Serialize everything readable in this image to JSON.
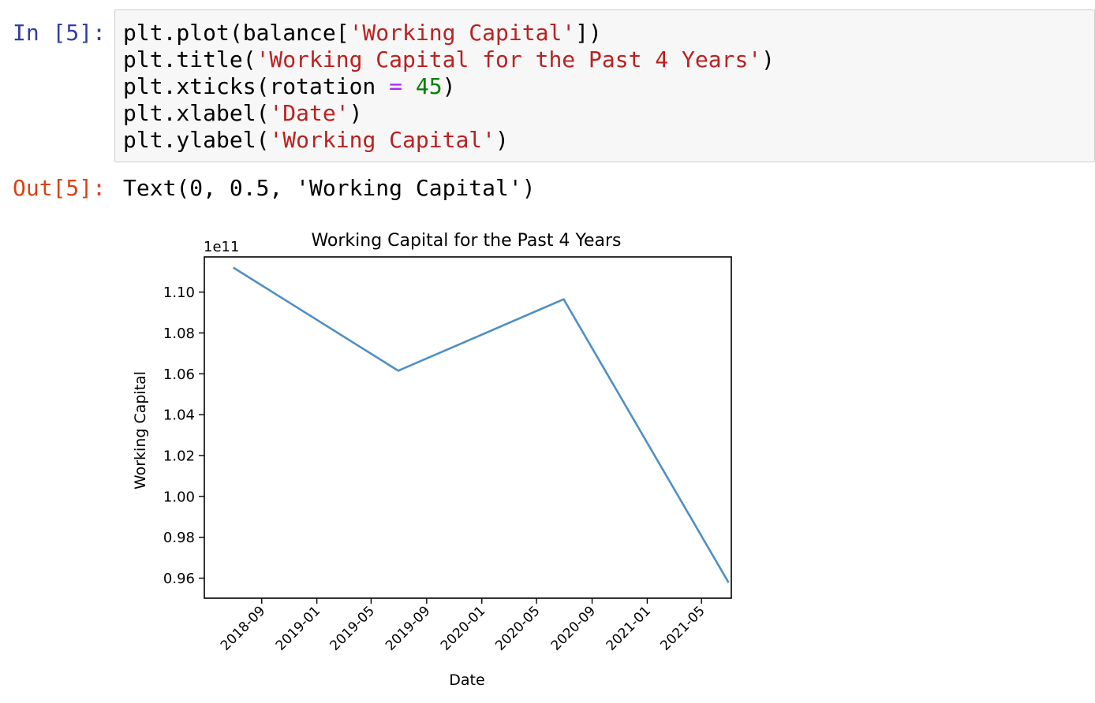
{
  "cell_in": {
    "prompt": "In [5]:",
    "code_lines": [
      [
        {
          "t": "plt.plot(balance[",
          "c": "plain"
        },
        {
          "t": "'Working Capital'",
          "c": "str"
        },
        {
          "t": "])",
          "c": "plain"
        }
      ],
      [
        {
          "t": "plt.title(",
          "c": "plain"
        },
        {
          "t": "'Working Capital for the Past 4 Years'",
          "c": "str"
        },
        {
          "t": ")",
          "c": "plain"
        }
      ],
      [
        {
          "t": "plt.xticks(rotation ",
          "c": "plain"
        },
        {
          "t": "=",
          "c": "op"
        },
        {
          "t": " ",
          "c": "plain"
        },
        {
          "t": "45",
          "c": "num"
        },
        {
          "t": ")",
          "c": "plain"
        }
      ],
      [
        {
          "t": "plt.xlabel(",
          "c": "plain"
        },
        {
          "t": "'Date'",
          "c": "str"
        },
        {
          "t": ")",
          "c": "plain"
        }
      ],
      [
        {
          "t": "plt.ylabel(",
          "c": "plain"
        },
        {
          "t": "'Working Capital'",
          "c": "str"
        },
        {
          "t": ")",
          "c": "plain"
        }
      ]
    ]
  },
  "cell_out": {
    "prompt": "Out[5]:",
    "text": "Text(0, 0.5, 'Working Capital')"
  },
  "colors": {
    "in_prompt": "#303f9f",
    "out_prompt": "#d84315",
    "code_string": "#ba2121",
    "code_number": "#008000",
    "code_operator": "#aa22ff",
    "line": "#4f8fc7"
  },
  "chart_data": {
    "type": "line",
    "title": "Working Capital for the Past 4 Years",
    "xlabel": "Date",
    "ylabel": "Working Capital",
    "y_offset_label": "1e11",
    "x_axis_type": "date",
    "x_tick_rotation": 45,
    "xlim": [
      "2018-04-27",
      "2021-07-06"
    ],
    "ylim": [
      0.9502,
      1.1172
    ],
    "x_ticks": [
      "2018-09",
      "2019-01",
      "2019-05",
      "2019-09",
      "2020-01",
      "2020-05",
      "2020-09",
      "2021-01",
      "2021-05"
    ],
    "y_ticks": [
      "0.96",
      "0.98",
      "1.00",
      "1.02",
      "1.04",
      "1.06",
      "1.08",
      "1.10"
    ],
    "y_tick_values": [
      0.96,
      0.98,
      1.0,
      1.02,
      1.04,
      1.06,
      1.08,
      1.1
    ],
    "series": [
      {
        "color": "#4f8fc7",
        "points": [
          {
            "x": "2018-06-30",
            "y": 1.112
          },
          {
            "x": "2019-06-30",
            "y": 1.0615
          },
          {
            "x": "2020-06-30",
            "y": 1.0965
          },
          {
            "x": "2021-06-30",
            "y": 0.9578
          }
        ]
      }
    ],
    "grid": false,
    "legend": "none"
  }
}
